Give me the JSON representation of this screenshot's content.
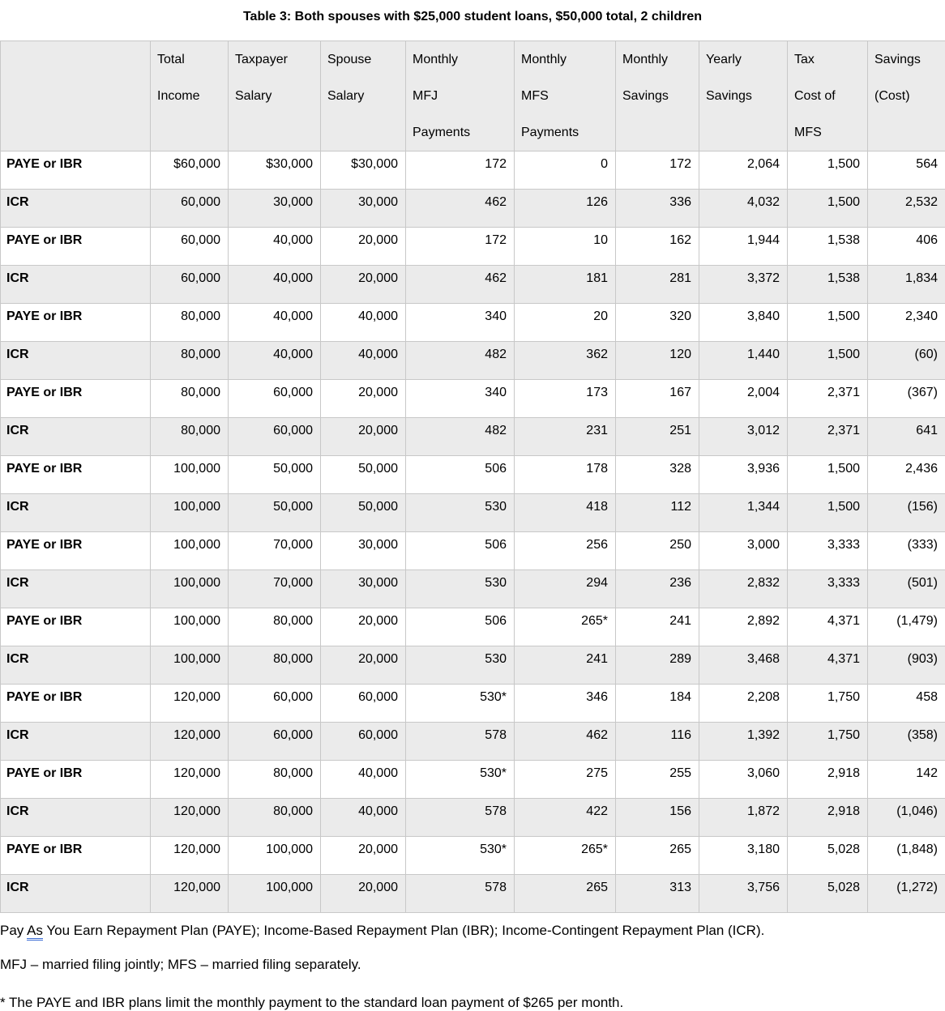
{
  "title": "Table 3: Both spouses with $25,000 student loans, $50,000 total, 2 children",
  "table": {
    "headers": [
      "",
      "Total\nIncome",
      "Taxpayer\nSalary",
      "Spouse\nSalary",
      "Monthly\nMFJ\nPayments",
      "Monthly\nMFS\nPayments",
      "Monthly\nSavings",
      "Yearly\nSavings",
      "Tax\nCost of\nMFS",
      "Savings\n(Cost)"
    ],
    "rows": [
      {
        "label": "PAYE or IBR",
        "shaded": false,
        "values": [
          "$60,000",
          "$30,000",
          "$30,000",
          "172",
          "0",
          "172",
          "2,064",
          "1,500",
          "564"
        ]
      },
      {
        "label": "ICR",
        "shaded": true,
        "values": [
          "60,000",
          "30,000",
          "30,000",
          "462",
          "126",
          "336",
          "4,032",
          "1,500",
          "2,532"
        ]
      },
      {
        "label": "PAYE or IBR",
        "shaded": false,
        "values": [
          "60,000",
          "40,000",
          "20,000",
          "172",
          "10",
          "162",
          "1,944",
          "1,538",
          "406"
        ]
      },
      {
        "label": "ICR",
        "shaded": true,
        "values": [
          "60,000",
          "40,000",
          "20,000",
          "462",
          "181",
          "281",
          "3,372",
          "1,538",
          "1,834"
        ]
      },
      {
        "label": "PAYE or IBR",
        "shaded": false,
        "values": [
          "80,000",
          "40,000",
          "40,000",
          "340",
          "20",
          "320",
          "3,840",
          "1,500",
          "2,340"
        ]
      },
      {
        "label": "ICR",
        "shaded": true,
        "values": [
          "80,000",
          "40,000",
          "40,000",
          "482",
          "362",
          "120",
          "1,440",
          "1,500",
          "(60)"
        ]
      },
      {
        "label": "PAYE or IBR",
        "shaded": false,
        "values": [
          "80,000",
          "60,000",
          "20,000",
          "340",
          "173",
          "167",
          "2,004",
          "2,371",
          "(367)"
        ]
      },
      {
        "label": "ICR",
        "shaded": true,
        "values": [
          "80,000",
          "60,000",
          "20,000",
          "482",
          "231",
          "251",
          "3,012",
          "2,371",
          "641"
        ]
      },
      {
        "label": "PAYE or IBR",
        "shaded": false,
        "values": [
          "100,000",
          "50,000",
          "50,000",
          "506",
          "178",
          "328",
          "3,936",
          "1,500",
          "2,436"
        ]
      },
      {
        "label": "ICR",
        "shaded": true,
        "values": [
          "100,000",
          "50,000",
          "50,000",
          "530",
          "418",
          "112",
          "1,344",
          "1,500",
          "(156)"
        ]
      },
      {
        "label": "PAYE or IBR",
        "shaded": false,
        "values": [
          "100,000",
          "70,000",
          "30,000",
          "506",
          "256",
          "250",
          "3,000",
          "3,333",
          "(333)"
        ]
      },
      {
        "label": "ICR",
        "shaded": true,
        "values": [
          "100,000",
          "70,000",
          "30,000",
          "530",
          "294",
          "236",
          "2,832",
          "3,333",
          "(501)"
        ]
      },
      {
        "label": "PAYE or IBR",
        "shaded": false,
        "values": [
          "100,000",
          "80,000",
          "20,000",
          "506",
          "265*",
          "241",
          "2,892",
          "4,371",
          "(1,479)"
        ]
      },
      {
        "label": "ICR",
        "shaded": true,
        "values": [
          "100,000",
          "80,000",
          "20,000",
          "530",
          "241",
          "289",
          "3,468",
          "4,371",
          "(903)"
        ]
      },
      {
        "label": "PAYE or IBR",
        "shaded": false,
        "values": [
          "120,000",
          "60,000",
          "60,000",
          "530*",
          "346",
          "184",
          "2,208",
          "1,750",
          "458"
        ]
      },
      {
        "label": "ICR",
        "shaded": true,
        "values": [
          "120,000",
          "60,000",
          "60,000",
          "578",
          "462",
          "116",
          "1,392",
          "1,750",
          "(358)"
        ]
      },
      {
        "label": "PAYE or IBR",
        "shaded": false,
        "values": [
          "120,000",
          "80,000",
          "40,000",
          "530*",
          "275",
          "255",
          "3,060",
          "2,918",
          "142"
        ]
      },
      {
        "label": "ICR",
        "shaded": true,
        "values": [
          "120,000",
          "80,000",
          "40,000",
          "578",
          "422",
          "156",
          "1,872",
          "2,918",
          "(1,046)"
        ]
      },
      {
        "label": "PAYE or IBR",
        "shaded": false,
        "values": [
          "120,000",
          "100,000",
          "20,000",
          "530*",
          "265*",
          "265",
          "3,180",
          "5,028",
          "(1,848)"
        ]
      },
      {
        "label": "ICR",
        "shaded": true,
        "values": [
          "120,000",
          "100,000",
          "20,000",
          "578",
          "265",
          "313",
          "3,756",
          "5,028",
          "(1,272)"
        ]
      }
    ]
  },
  "footnotes": {
    "plans_before": "Pay ",
    "plans_flagged_word": "As",
    "plans_after": " You Earn Repayment Plan (PAYE); Income-Based Repayment Plan (IBR); Income-Contingent Repayment Plan (ICR).",
    "abbreviations": "MFJ – married filing jointly; MFS – married filing separately.",
    "asterisk_note": "* The PAYE and IBR plans limit the monthly payment to the standard loan payment of $265 per month."
  },
  "colors": {
    "header_bg": "#ebebeb",
    "shaded_row_bg": "#ebebeb",
    "grid_border": "#c8c8c8",
    "grammar_underline_blue": "#3a6bd4"
  }
}
